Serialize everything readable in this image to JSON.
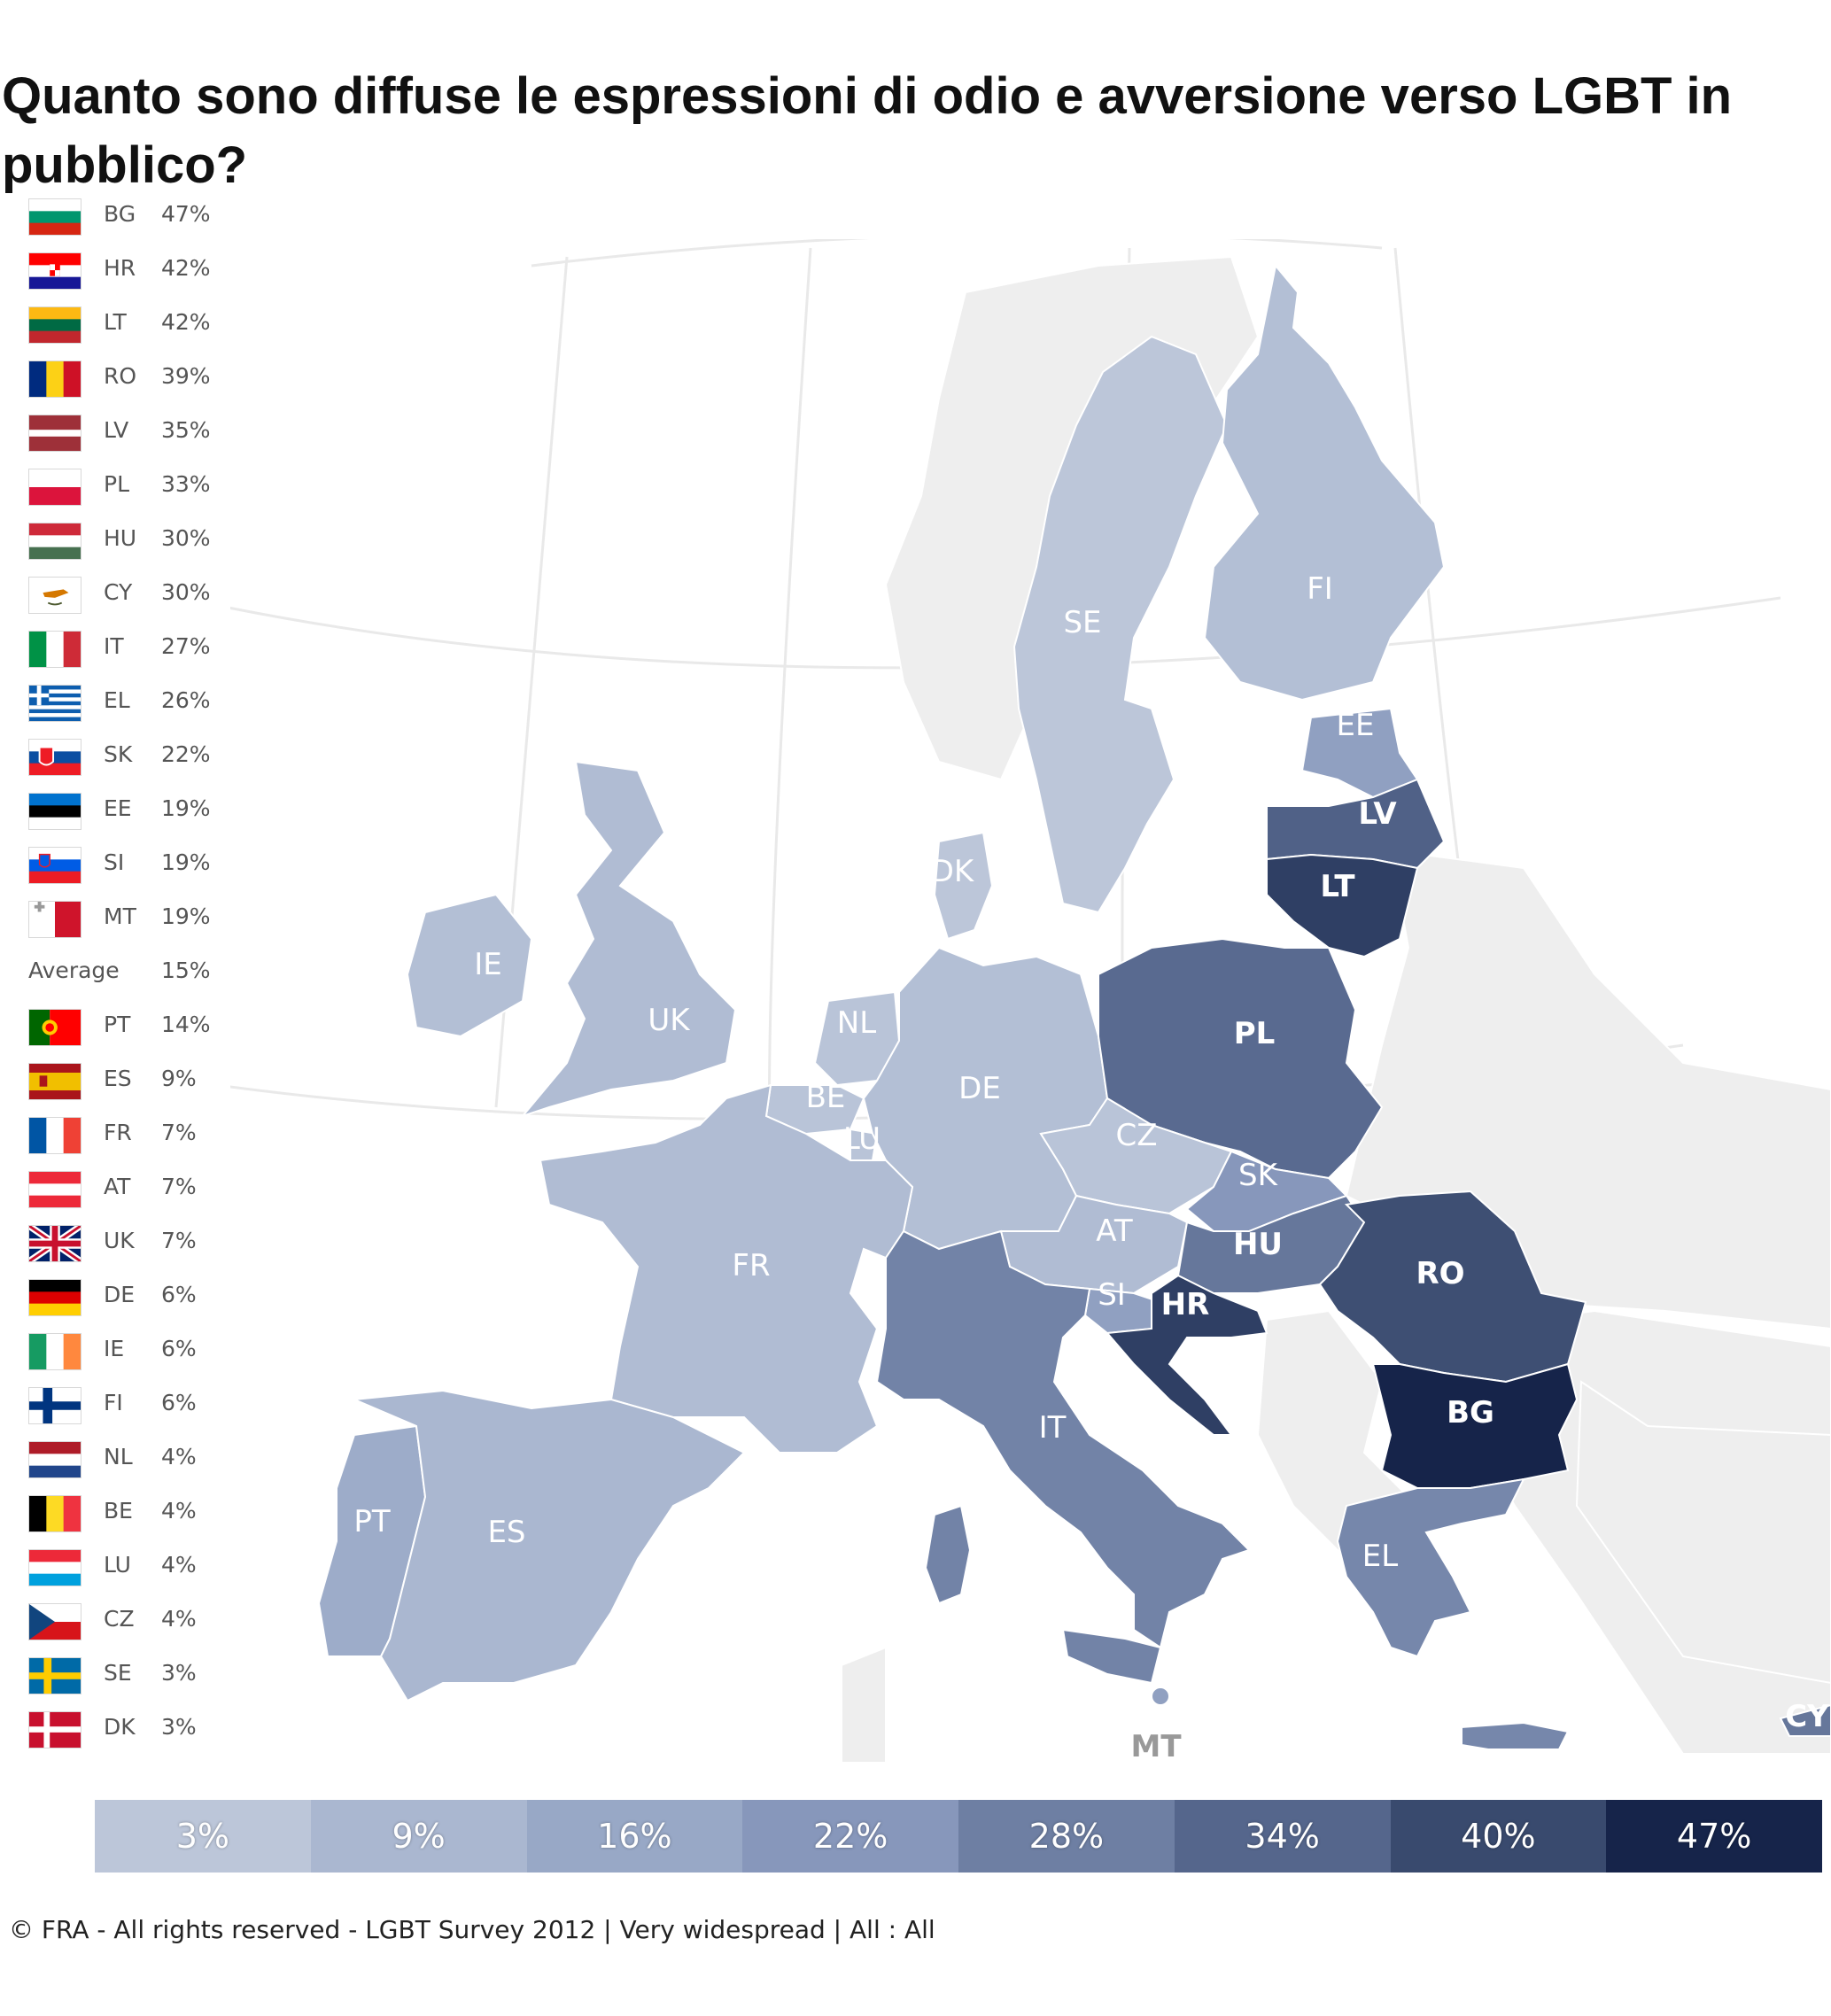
{
  "title": "Quanto sono diffuse le espressioni di odio e avversione verso LGBT in pubblico?",
  "footer": "© FRA - All rights reserved - LGBT Survey 2012 | Very widespread | All : All",
  "legend": {
    "average_label": "Average",
    "average_value": "15%",
    "above": [
      {
        "code": "BG",
        "value": "47%"
      },
      {
        "code": "HR",
        "value": "42%"
      },
      {
        "code": "LT",
        "value": "42%"
      },
      {
        "code": "RO",
        "value": "39%"
      },
      {
        "code": "LV",
        "value": "35%"
      },
      {
        "code": "PL",
        "value": "33%"
      },
      {
        "code": "HU",
        "value": "30%"
      },
      {
        "code": "CY",
        "value": "30%"
      },
      {
        "code": "IT",
        "value": "27%"
      },
      {
        "code": "EL",
        "value": "26%"
      },
      {
        "code": "SK",
        "value": "22%"
      },
      {
        "code": "EE",
        "value": "19%"
      },
      {
        "code": "SI",
        "value": "19%"
      },
      {
        "code": "MT",
        "value": "19%"
      }
    ],
    "below": [
      {
        "code": "PT",
        "value": "14%"
      },
      {
        "code": "ES",
        "value": "9%"
      },
      {
        "code": "FR",
        "value": "7%"
      },
      {
        "code": "AT",
        "value": "7%"
      },
      {
        "code": "UK",
        "value": "7%"
      },
      {
        "code": "DE",
        "value": "6%"
      },
      {
        "code": "IE",
        "value": "6%"
      },
      {
        "code": "FI",
        "value": "6%"
      },
      {
        "code": "NL",
        "value": "4%"
      },
      {
        "code": "BE",
        "value": "4%"
      },
      {
        "code": "LU",
        "value": "4%"
      },
      {
        "code": "CZ",
        "value": "4%"
      },
      {
        "code": "SE",
        "value": "3%"
      },
      {
        "code": "DK",
        "value": "3%"
      }
    ]
  },
  "scale": {
    "labels": [
      "3%",
      "9%",
      "16%",
      "22%",
      "28%",
      "34%",
      "40%",
      "47%"
    ],
    "colors": [
      "#bcc6d9",
      "#aab7d0",
      "#98a8c6",
      "#8797bb",
      "#6e7fa3",
      "#55668c",
      "#394a6e",
      "#16244a"
    ]
  },
  "map": {
    "countries": [
      {
        "code": "SE",
        "label": "SE",
        "value": 3
      },
      {
        "code": "FI",
        "label": "FI",
        "value": 6
      },
      {
        "code": "EE",
        "label": "EE",
        "value": 19
      },
      {
        "code": "LV",
        "label": "LV",
        "value": 35
      },
      {
        "code": "LT",
        "label": "LT",
        "value": 42
      },
      {
        "code": "DK",
        "label": "DK",
        "value": 3
      },
      {
        "code": "IE",
        "label": "IE",
        "value": 6
      },
      {
        "code": "UK",
        "label": "UK",
        "value": 7
      },
      {
        "code": "NL",
        "label": "NL",
        "value": 4
      },
      {
        "code": "BE",
        "label": "BE",
        "value": 4
      },
      {
        "code": "LU",
        "label": "LU",
        "value": 4
      },
      {
        "code": "DE",
        "label": "DE",
        "value": 6
      },
      {
        "code": "PL",
        "label": "PL",
        "value": 33
      },
      {
        "code": "CZ",
        "label": "CZ",
        "value": 4
      },
      {
        "code": "SK",
        "label": "SK",
        "value": 22
      },
      {
        "code": "AT",
        "label": "AT",
        "value": 7
      },
      {
        "code": "HU",
        "label": "HU",
        "value": 30
      },
      {
        "code": "RO",
        "label": "RO",
        "value": 39
      },
      {
        "code": "FR",
        "label": "FR",
        "value": 7
      },
      {
        "code": "SI",
        "label": "SI",
        "value": 19
      },
      {
        "code": "HR",
        "label": "HR",
        "value": 42
      },
      {
        "code": "IT",
        "label": "IT",
        "value": 27
      },
      {
        "code": "BG",
        "label": "BG",
        "value": 47
      },
      {
        "code": "EL",
        "label": "EL",
        "value": 26
      },
      {
        "code": "PT",
        "label": "PT",
        "value": 14
      },
      {
        "code": "ES",
        "label": "ES",
        "value": 9
      },
      {
        "code": "MT",
        "label": "MT",
        "value": 19
      },
      {
        "code": "CY",
        "label": "CY",
        "value": 30
      }
    ]
  }
}
